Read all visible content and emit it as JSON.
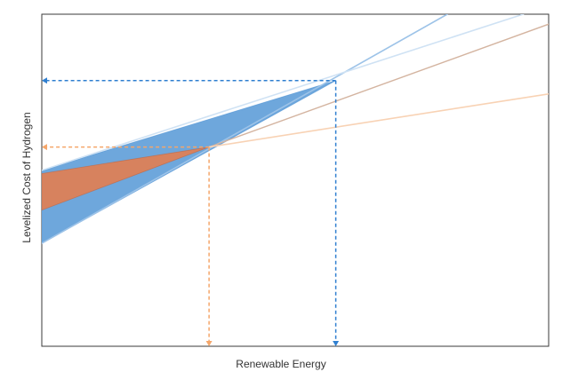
{
  "chart_data": {
    "type": "line",
    "title": "",
    "xlabel": "Renewable Energy",
    "ylabel": "Levelized Cost of Hydrogen",
    "xlim": [
      0,
      100
    ],
    "ylim": [
      0,
      100
    ],
    "grid": false,
    "ticks_shown": false,
    "legend": "none",
    "bands": [
      {
        "id": "blue-band",
        "color": "#6ea7dc",
        "edge_color": "#4a8fd4",
        "start": {
          "x": 0,
          "y_low": 31,
          "y_high": 53
        },
        "end": {
          "x": 58,
          "y": 80
        }
      },
      {
        "id": "orange-band",
        "color": "#d7825e",
        "edge_color": "#c0623e",
        "start": {
          "x": 0,
          "y_low": 41,
          "y_high": 52
        },
        "end": {
          "x": 33,
          "y": 60
        }
      }
    ],
    "lines": [
      {
        "id": "blue-steep-line",
        "color": "#9dc3e8",
        "width": 1.6,
        "points": [
          [
            0,
            31
          ],
          [
            80,
            100
          ]
        ]
      },
      {
        "id": "blue-light-line",
        "color": "#cfe2f4",
        "width": 1.6,
        "points": [
          [
            0,
            53
          ],
          [
            95,
            100
          ]
        ]
      },
      {
        "id": "brown-line",
        "color": "#d4b4a0",
        "width": 1.4,
        "points": [
          [
            33,
            60
          ],
          [
            100,
            97
          ]
        ]
      },
      {
        "id": "peach-line",
        "color": "#f8d2b4",
        "width": 1.6,
        "points": [
          [
            33,
            60
          ],
          [
            100,
            76
          ]
        ]
      }
    ],
    "reference_lines": [
      {
        "id": "blue-horizontal-ref",
        "color": "#2f7fd0",
        "from": [
          58,
          80
        ],
        "to": [
          0,
          80
        ],
        "arrow": "end"
      },
      {
        "id": "blue-vertical-ref",
        "color": "#2f7fd0",
        "from": [
          58,
          80
        ],
        "to": [
          58,
          0
        ],
        "arrow": "end"
      },
      {
        "id": "orange-horizontal-ref",
        "color": "#f5a66a",
        "from": [
          33,
          60
        ],
        "to": [
          0,
          60
        ],
        "arrow": "end"
      },
      {
        "id": "orange-vertical-ref",
        "color": "#f5a66a",
        "from": [
          33,
          60
        ],
        "to": [
          33,
          0
        ],
        "arrow": "end"
      }
    ]
  }
}
